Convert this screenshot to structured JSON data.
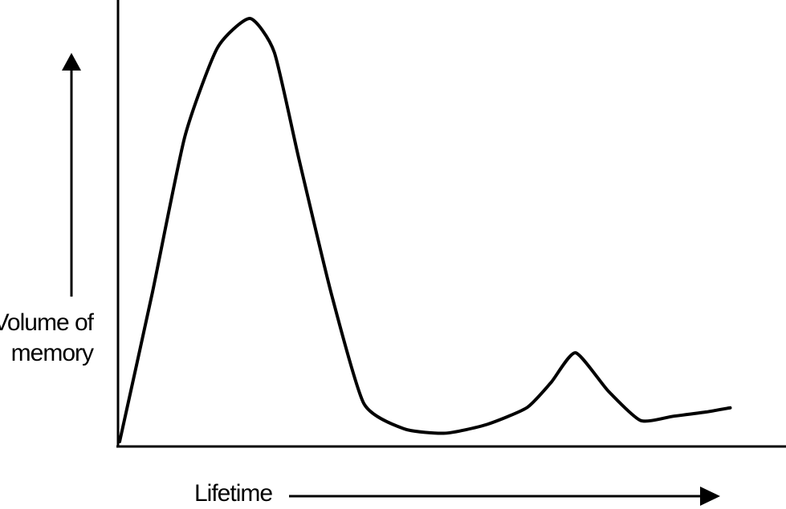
{
  "chart_data": {
    "type": "line",
    "title": "",
    "xlabel": "Lifetime",
    "ylabel_lines": [
      "Volume of",
      "memory"
    ],
    "grid": false,
    "legend": "none",
    "xlim": [
      0,
      100
    ],
    "ylim": [
      0,
      100
    ],
    "series": [
      {
        "values_xy": [
          [
            0,
            0
          ],
          [
            4,
            35
          ],
          [
            8,
            72
          ],
          [
            12,
            93
          ],
          [
            16,
            100
          ],
          [
            19,
            92
          ],
          [
            22,
            67
          ],
          [
            26,
            35
          ],
          [
            30,
            9
          ],
          [
            35,
            3
          ],
          [
            40,
            2
          ],
          [
            45,
            4
          ],
          [
            50,
            8
          ],
          [
            53,
            14
          ],
          [
            56,
            21
          ],
          [
            60,
            12
          ],
          [
            64,
            5
          ],
          [
            68,
            6
          ],
          [
            72,
            7
          ],
          [
            75,
            8
          ]
        ]
      }
    ],
    "colors": {
      "line": "#000000",
      "background": "#ffffff"
    }
  }
}
